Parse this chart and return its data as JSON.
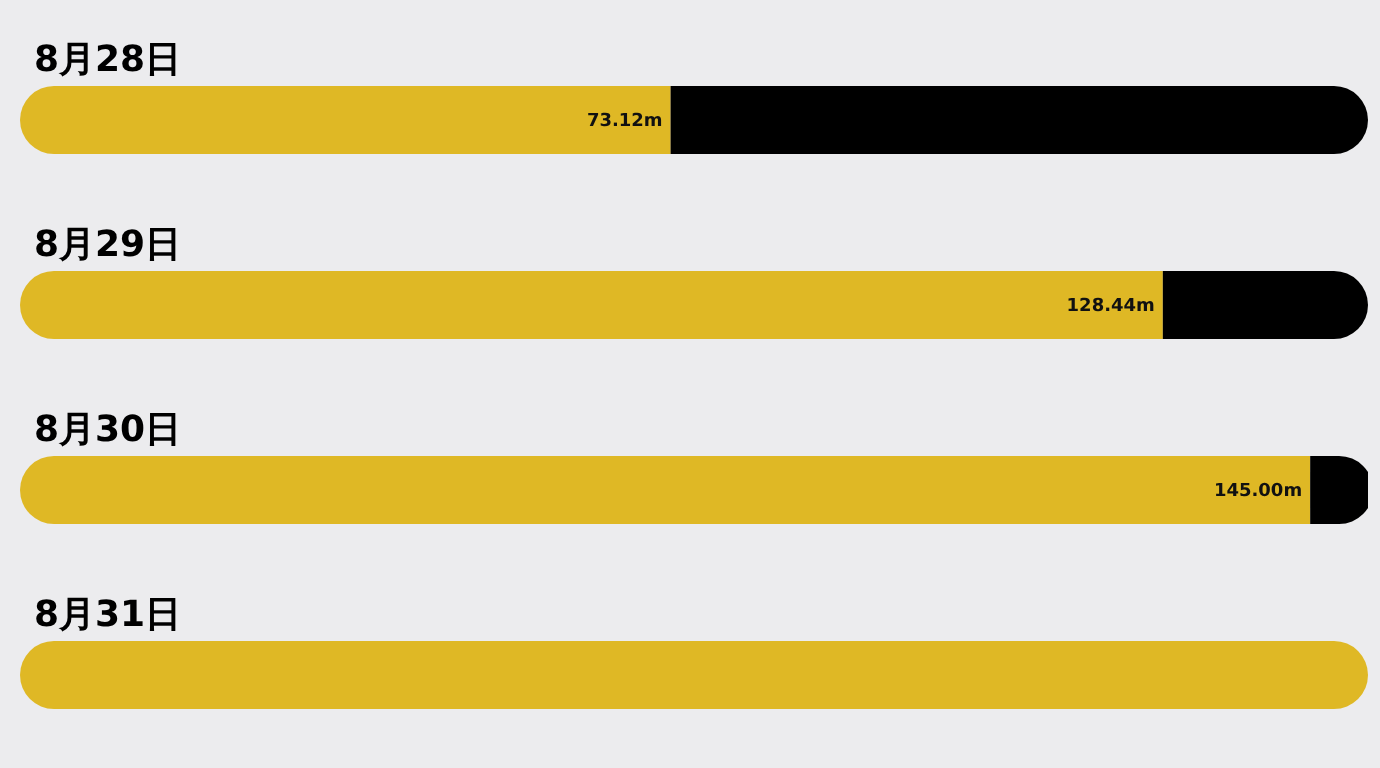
{
  "chart_data": {
    "type": "bar",
    "orientation": "horizontal",
    "stacked": true,
    "categories": [
      "8月28日",
      "8月29日",
      "8月30日",
      "8月31日"
    ],
    "series": [
      {
        "color": "#dfb825",
        "values": [
          73.12,
          128.44,
          145.0,
          151.5
        ],
        "value_labels": [
          "73.12m",
          "128.44m",
          "145.00m",
          null
        ]
      },
      {
        "color": "#000000",
        "values": [
          78.38,
          23.06,
          6.5,
          0
        ]
      }
    ],
    "xlim": [
      0,
      151.5
    ],
    "tick_labels": "y",
    "legend": false,
    "grid": false
  }
}
